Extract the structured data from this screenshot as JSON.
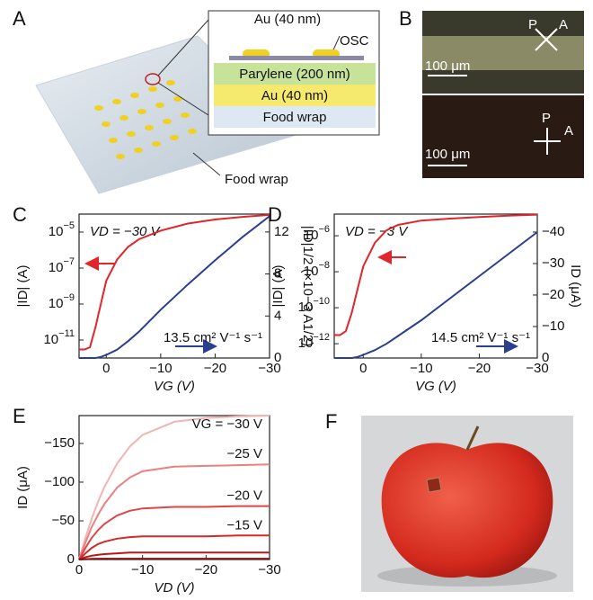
{
  "chart_data": [
    {
      "type": "line",
      "label": "C",
      "ylog": true,
      "xlim": [
        5,
        -30
      ],
      "ylim": [
        1e-12,
        0.0001
      ],
      "y2lim": [
        0,
        13.7
      ],
      "xticks": [
        0,
        {
          "value": -10,
          "label": "−10"
        },
        {
          "value": -20,
          "label": "−20"
        },
        {
          "value": -30,
          "label": "−30"
        }
      ],
      "yticks": [
        {
          "value": 1e-05,
          "label": "10−5"
        },
        {
          "value": 1e-07,
          "label": "10−7"
        },
        {
          "value": 1e-09,
          "label": "10−9"
        },
        {
          "value": 1e-11,
          "label": "10−11"
        }
      ],
      "y2ticks": [
        0,
        4,
        8,
        12
      ],
      "xlabel": "VG (V)",
      "ylabel": "|ID| (A)",
      "y2label": "|ID|1/2 (×10−3 A1/2)",
      "annotations": [
        "VD = −30 V",
        "13.5 cm² V⁻¹ s⁻¹"
      ],
      "x": [
        5,
        4,
        3,
        2,
        1,
        0,
        -2,
        -4,
        -6,
        -10,
        -15,
        -20,
        -25,
        -30
      ],
      "series": [
        {
          "color": "#e0262b",
          "values": [
            3e-12,
            3e-12,
            4e-12,
            5e-11,
            1e-09,
            2e-08,
            3e-07,
            1.5e-06,
            4e-06,
            1.2e-05,
            3e-05,
            5e-05,
            7e-05,
            9e-05
          ]
        },
        {
          "color": "#2a3f8f",
          "axis": "y2",
          "values": [
            0,
            0,
            0,
            0,
            0.1,
            0.3,
            0.8,
            1.6,
            2.5,
            4.6,
            7.0,
            9.3,
            11.5,
            13.5
          ]
        }
      ]
    },
    {
      "type": "line",
      "label": "D",
      "ylog": true,
      "xlim": [
        5,
        -30
      ],
      "ylim": [
        1.6e-13,
        1.6e-05
      ],
      "y2lim": [
        0,
        -45.7
      ],
      "xticks": [
        0,
        {
          "value": -10,
          "label": "−10"
        },
        {
          "value": -20,
          "label": "−20"
        },
        {
          "value": -30,
          "label": "−30"
        }
      ],
      "yticks": [
        {
          "value": 1e-06,
          "label": "10−6"
        },
        {
          "value": 1e-08,
          "label": "10−8"
        },
        {
          "value": 1e-10,
          "label": "10−10"
        },
        {
          "value": 1e-12,
          "label": "10−12"
        }
      ],
      "y2ticks": [
        0,
        {
          "value": -10,
          "label": "−10"
        },
        {
          "value": -20,
          "label": "−20"
        },
        {
          "value": -30,
          "label": "−30"
        },
        {
          "value": -40,
          "label": "−40"
        }
      ],
      "xlabel": "VG (V)",
      "ylabel": "|ID| (A)",
      "y2label": "ID (μA)",
      "annotations": [
        "VD = −3 V",
        "14.5 cm² V⁻¹ s⁻¹"
      ],
      "x": [
        5,
        4,
        3,
        2,
        1,
        0,
        -2,
        -4,
        -6,
        -10,
        -15,
        -20,
        -25,
        -30
      ],
      "series": [
        {
          "color": "#e0262b",
          "values": [
            3e-12,
            3e-12,
            5e-12,
            5e-11,
            1e-09,
            2e-08,
            4e-07,
            2e-06,
            4e-06,
            7e-06,
            9e-06,
            1.1e-05,
            1.3e-05,
            1.5e-05
          ]
        },
        {
          "color": "#2a3f8f",
          "axis": "y2",
          "values": [
            0,
            0,
            0,
            0,
            -0.3,
            -1,
            -2.5,
            -4.5,
            -7,
            -12,
            -19,
            -26,
            -33,
            -40
          ]
        }
      ]
    },
    {
      "type": "line",
      "label": "E",
      "ylog": false,
      "xlim": [
        0,
        -30
      ],
      "ylim": [
        0,
        -186
      ],
      "xticks": [
        0,
        {
          "value": -10,
          "label": "−10"
        },
        {
          "value": -20,
          "label": "−20"
        },
        {
          "value": -30,
          "label": "−30"
        }
      ],
      "yticks": [
        0,
        {
          "value": -50,
          "label": "−50"
        },
        {
          "value": -100,
          "label": "−100"
        },
        {
          "value": -150,
          "label": "−150"
        }
      ],
      "xlabel": "VD (V)",
      "ylabel": "ID (μA)",
      "x": [
        0,
        -1,
        -2,
        -3,
        -4,
        -6,
        -8,
        -10,
        -15,
        -20,
        -25,
        -30
      ],
      "series": [
        {
          "name": "VG = −30 V",
          "color": "#f2b3b3",
          "values": [
            0,
            -28,
            -53,
            -75,
            -94,
            -124,
            -146,
            -161,
            -178,
            -183,
            -185,
            -186
          ]
        },
        {
          "name": "−25 V",
          "color": "#ea8080",
          "values": [
            0,
            -22,
            -42,
            -58,
            -72,
            -93,
            -106,
            -114,
            -120,
            -121,
            -122,
            -123
          ]
        },
        {
          "name": "−20 V",
          "color": "#e04545",
          "values": [
            0,
            -15,
            -28,
            -38,
            -46,
            -57,
            -63,
            -66,
            -68,
            -68,
            -69,
            -69
          ]
        },
        {
          "name": "−15 V",
          "color": "#d42a2a",
          "values": [
            0,
            -8,
            -15,
            -20,
            -23,
            -27,
            -29,
            -30,
            -30,
            -30,
            -31,
            -31
          ]
        },
        {
          "color": "#b81818",
          "values": [
            0,
            -3,
            -5,
            -6,
            -7,
            -8,
            -9,
            -9,
            -9,
            -9,
            -9,
            -9
          ]
        },
        {
          "color": "#8b0f0f",
          "values": [
            0,
            -0.5,
            -0.8,
            -1,
            -1,
            -1,
            -1,
            -1,
            -1,
            -1,
            -1,
            -1
          ]
        }
      ]
    }
  ],
  "figure": {
    "panel_a": {
      "label": "A",
      "top_label": "Au (40 nm)",
      "osc_label": "OSC",
      "layers": [
        "Parylene (200 nm)",
        "Au (40 nm)",
        "Food wrap"
      ],
      "callout": "Food wrap"
    },
    "panel_b": {
      "label": "B",
      "top": {
        "p": "P",
        "a": "A",
        "scale": "100 μm"
      },
      "bottom": {
        "p": "P",
        "a": "A",
        "scale": "100 μm"
      }
    },
    "panel_f": {
      "label": "F"
    }
  }
}
